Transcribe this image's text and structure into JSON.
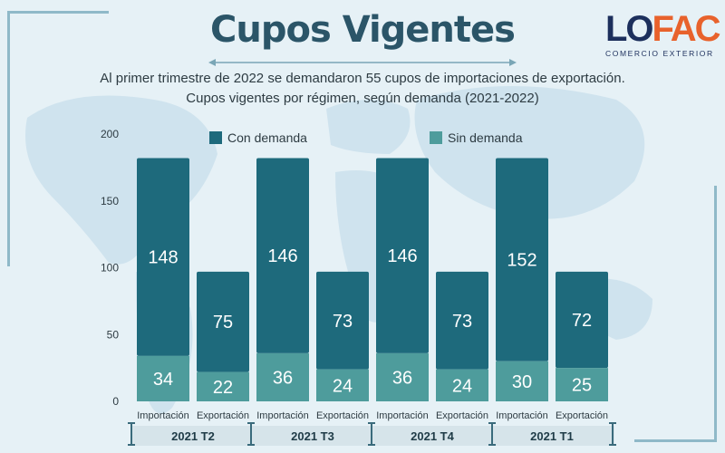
{
  "header": {
    "title": "Cupos Vigentes",
    "subtitle_line1": "Al primer trimestre de 2022 se demandaron 55 cupos de importaciones de exportación.",
    "subtitle_line2": "Cupos vigentes por régimen, según demanda (2021-2022)"
  },
  "logo": {
    "main_left": "LO",
    "main_right": "FAC",
    "tagline": "COMERCIO EXTERIOR"
  },
  "colors": {
    "con_demanda": "#1e6a7c",
    "sin_demanda": "#4e9c9c",
    "background": "#e6f1f6",
    "group_label_bg": "#d6e4ea",
    "title": "#2b5568"
  },
  "chart_data": {
    "type": "bar",
    "stacked": true,
    "ylim": [
      0,
      200
    ],
    "y_ticks": [
      0,
      50,
      100,
      150,
      200
    ],
    "grid": false,
    "legend_placement": "top",
    "categories": [
      "Importación",
      "Exportación",
      "Importación",
      "Exportación",
      "Importación",
      "Exportación",
      "Importación",
      "Exportación"
    ],
    "groups": [
      "2021 T2",
      "2021 T3",
      "2021 T4",
      "2021 T1"
    ],
    "series": [
      {
        "name": "Sin demanda",
        "values": [
          34,
          22,
          36,
          24,
          36,
          24,
          30,
          25
        ]
      },
      {
        "name": "Con demanda",
        "values": [
          148,
          75,
          146,
          73,
          146,
          73,
          152,
          72
        ]
      }
    ]
  }
}
